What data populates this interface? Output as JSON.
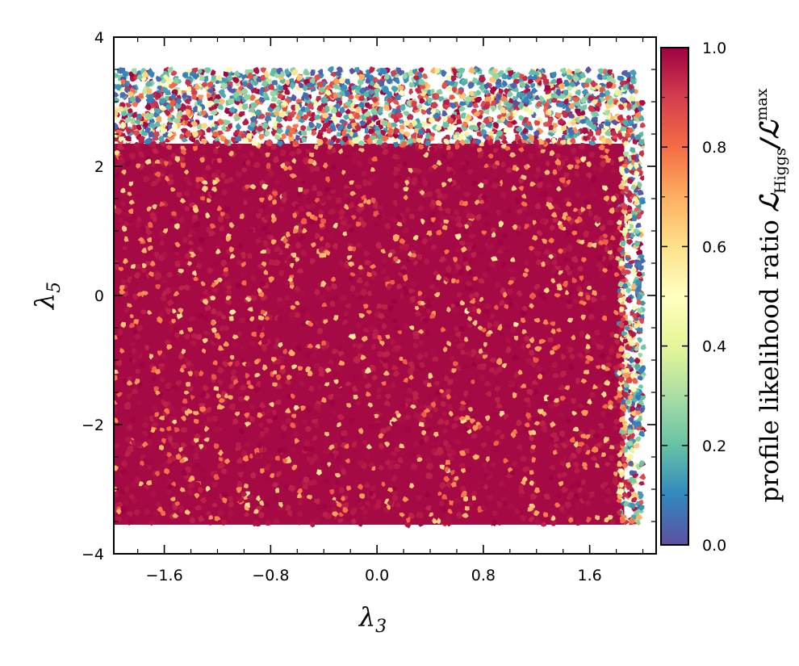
{
  "chart_data": {
    "type": "scatter",
    "xlabel": "λ",
    "xlabel_sub": "3",
    "ylabel": "λ",
    "ylabel_sub": "5",
    "xlim": [
      -1.98,
      2.1
    ],
    "ylim": [
      -4,
      4
    ],
    "x_ticks": [
      -1.6,
      -0.8,
      0.0,
      0.8,
      1.6
    ],
    "x_tick_labels": [
      "−1.6",
      "−0.8",
      "0.0",
      "0.8",
      "1.6"
    ],
    "y_ticks": [
      -4,
      -2,
      0,
      2,
      4
    ],
    "y_tick_labels": [
      "−4",
      "−2",
      "0",
      "2",
      "4"
    ],
    "point_region": {
      "x": [
        -1.98,
        2.0
      ],
      "y": [
        -3.55,
        3.5
      ]
    },
    "colorbar": {
      "label_prefix": "profile likelihood ratio ",
      "label_math": "ℒ",
      "label_sub": "Higgs",
      "label_slash": "/",
      "label_sup": "max",
      "range": [
        0.0,
        1.0
      ],
      "ticks": [
        0.0,
        0.2,
        0.4,
        0.6,
        0.8,
        1.0
      ],
      "tick_labels": [
        "0.0",
        "0.2",
        "0.4",
        "0.6",
        "0.8",
        "1.0"
      ],
      "colormap": "Spectral_r",
      "colormap_stops": [
        "#5e4fa2",
        "#3288bd",
        "#66c2a5",
        "#abdda4",
        "#e6f598",
        "#ffffbf",
        "#fee08b",
        "#fdae61",
        "#f46d43",
        "#d53e4f",
        "#9e0142"
      ]
    },
    "grid": false,
    "description": "Dense scatter: nearly all points at ratio ≈1.0 (dark red) filling the region; lower-ratio points (orange/yellow/green/blue) concentrated along top edge (λ5 > 2.4) and right edge (λ3 > 1.8), with sparse scattered orange points throughout."
  }
}
